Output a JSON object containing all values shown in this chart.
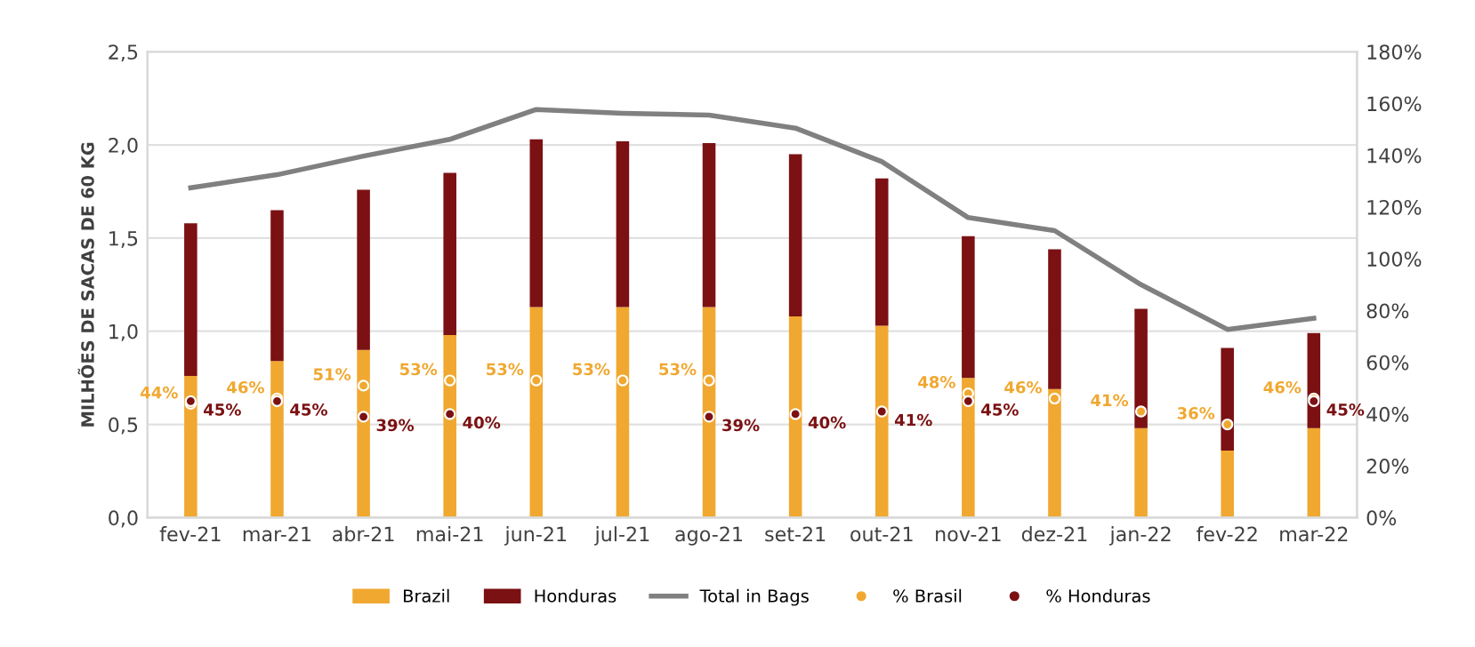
{
  "chart_data": {
    "type": "bar",
    "stacked": true,
    "ylabel": "MILHÕES DE SACAS DE 60 KG",
    "categories": [
      "fev-21",
      "mar-21",
      "abr-21",
      "mai-21",
      "jun-21",
      "jul-21",
      "ago-21",
      "set-21",
      "out-21",
      "nov-21",
      "dez-21",
      "jan-22",
      "fev-22",
      "mar-22"
    ],
    "series": [
      {
        "name": "Brazil",
        "color": "#f0a830",
        "values": [
          0.76,
          0.84,
          0.9,
          0.98,
          1.13,
          1.13,
          1.13,
          1.08,
          1.03,
          0.75,
          0.69,
          0.48,
          0.36,
          0.48
        ]
      },
      {
        "name": "Honduras",
        "color": "#7b1113",
        "values": [
          0.82,
          0.81,
          0.86,
          0.87,
          0.9,
          0.89,
          0.88,
          0.87,
          0.79,
          0.76,
          0.75,
          0.64,
          0.55,
          0.51
        ]
      },
      {
        "name": "Total in Bags",
        "type": "line",
        "color": "#808080",
        "marker": "none",
        "line_style": "solid",
        "values": [
          1.77,
          1.84,
          1.94,
          2.03,
          2.19,
          2.17,
          2.16,
          2.09,
          1.91,
          1.61,
          1.54,
          1.25,
          1.01,
          1.07
        ]
      },
      {
        "name": "% Brasil",
        "type": "scatter",
        "axis": "y2",
        "marker": "circle",
        "color": "#f0a830",
        "values": [
          44,
          46,
          51,
          53,
          53,
          53,
          53,
          null,
          null,
          48,
          46,
          41,
          36,
          46
        ],
        "value_labels": [
          "44%",
          "46%",
          "51%",
          "53%",
          "53%",
          "53%",
          "53%",
          null,
          null,
          "48%",
          "46%",
          "41%",
          "36%",
          "46%"
        ]
      },
      {
        "name": "% Honduras",
        "type": "scatter",
        "axis": "y2",
        "marker": "circle",
        "color": "#7b1113",
        "values": [
          45,
          45,
          39,
          40,
          null,
          null,
          39,
          40,
          41,
          45,
          null,
          null,
          null,
          45
        ],
        "value_labels": [
          "45%",
          "45%",
          "39%",
          "40%",
          null,
          null,
          "39%",
          "40%",
          "41%",
          "45%",
          null,
          null,
          null,
          "45%"
        ]
      }
    ],
    "ylim": [
      0,
      2.5
    ],
    "yticks": [
      {
        "value": 0,
        "label": "0,0"
      },
      {
        "value": 0.5,
        "label": "0,5"
      },
      {
        "value": 1,
        "label": "1,0"
      },
      {
        "value": 1.5,
        "label": "1,5"
      },
      {
        "value": 2,
        "label": "2,0"
      },
      {
        "value": 2.5,
        "label": "2,5"
      }
    ],
    "y2lim": [
      0,
      180
    ],
    "y2ticks": [
      {
        "value": 0,
        "label": "0%"
      },
      {
        "value": 20,
        "label": "20%"
      },
      {
        "value": 40,
        "label": "40%"
      },
      {
        "value": 60,
        "label": "60%"
      },
      {
        "value": 80,
        "label": "80%"
      },
      {
        "value": 100,
        "label": "100%"
      },
      {
        "value": 120,
        "label": "120%"
      },
      {
        "value": 140,
        "label": "140%"
      },
      {
        "value": 160,
        "label": "160%"
      },
      {
        "value": 180,
        "label": "180%"
      }
    ],
    "grid": "y",
    "legend": "bottom"
  }
}
